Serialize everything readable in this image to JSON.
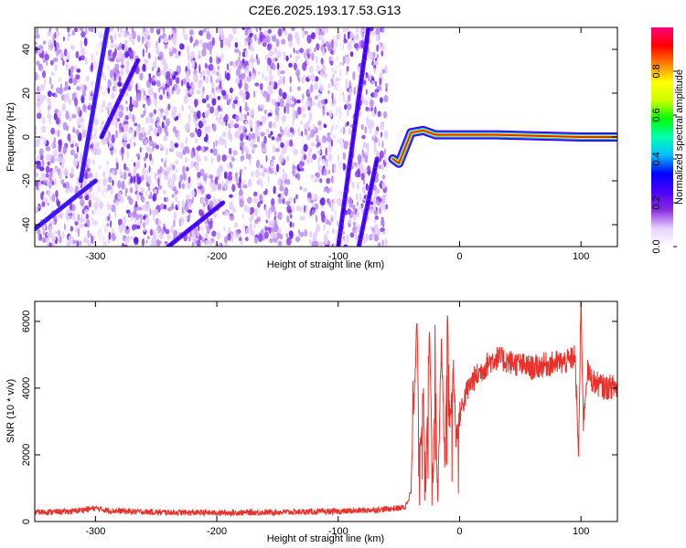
{
  "title": "C2E6.2025.193.17.53.G13",
  "chart_data": [
    {
      "type": "heatmap",
      "title": "C2E6.2025.193.17.53.G13",
      "xlabel": "Height of straight line (km)",
      "ylabel": "Frequency (Hz)",
      "xlim": [
        -350,
        130
      ],
      "ylim": [
        -50,
        50
      ],
      "x_ticks": [
        -300,
        -200,
        -100,
        0,
        100
      ],
      "y_ticks": [
        -40,
        -20,
        0,
        20,
        40
      ],
      "colorbar": {
        "label": "Normalized spectral amplitude",
        "range": [
          0,
          1
        ],
        "ticks": [
          0.0,
          0.2,
          0.4,
          0.6,
          0.8
        ],
        "tick_labels": [
          "0.0",
          "0.2",
          "0.4",
          "0.6",
          "0.8"
        ],
        "colormap": [
          "#ffffff",
          "#e8d0ff",
          "#8a2be2",
          "#4b00ff",
          "#0000ff",
          "#00bfff",
          "#00ffb0",
          "#00ff00",
          "#ccff00",
          "#ffff00",
          "#ff8000",
          "#ff0000",
          "#ff0080"
        ]
      },
      "features": [
        {
          "name": "noise field",
          "x_range": [
            -350,
            -60
          ],
          "y_range": [
            -50,
            50
          ],
          "amplitude": 0.1
        },
        {
          "name": "carrier line",
          "points": [
            [
              -55,
              -10
            ],
            [
              -50,
              -12
            ],
            [
              -45,
              -5
            ],
            [
              -40,
              2
            ],
            [
              -30,
              3
            ],
            [
              -20,
              1
            ],
            [
              0,
              1
            ],
            [
              30,
              1
            ],
            [
              100,
              0
            ],
            [
              130,
              0
            ]
          ],
          "amplitude": 0.9
        },
        {
          "name": "streak 1",
          "points": [
            [
              -350,
              -42
            ],
            [
              -300,
              -20
            ]
          ],
          "amplitude": 0.35
        },
        {
          "name": "streak 2",
          "points": [
            [
              -312,
              -20
            ],
            [
              -290,
              50
            ]
          ],
          "amplitude": 0.35
        },
        {
          "name": "streak 3",
          "points": [
            [
              -295,
              0
            ],
            [
              -265,
              35
            ]
          ],
          "amplitude": 0.3
        },
        {
          "name": "streak 4",
          "points": [
            [
              -240,
              -50
            ],
            [
              -195,
              -30
            ]
          ],
          "amplitude": 0.3
        },
        {
          "name": "streak 5",
          "points": [
            [
              -100,
              -50
            ],
            [
              -75,
              50
            ]
          ],
          "amplitude": 0.3
        },
        {
          "name": "streak 6",
          "points": [
            [
              -83,
              -50
            ],
            [
              -68,
              -10
            ]
          ],
          "amplitude": 0.3
        }
      ]
    },
    {
      "type": "line",
      "xlabel": "Height of straight line (km)",
      "ylabel": "SNR (10 * v/v)",
      "xlim": [
        -350,
        130
      ],
      "ylim": [
        0,
        6600
      ],
      "x_ticks": [
        -300,
        -200,
        -100,
        0,
        100
      ],
      "y_ticks": [
        0,
        2000,
        4000,
        6000
      ],
      "color": "#e8312a",
      "series": [
        {
          "x": [
            -350,
            -320,
            -300,
            -290,
            -270,
            -250,
            -200,
            -150,
            -100,
            -70,
            -50,
            -45,
            -40,
            -38,
            -35,
            -33,
            -30,
            -28,
            -25,
            -22,
            -20,
            -18,
            -15,
            -12,
            -10,
            -8,
            -5,
            -3,
            0,
            5,
            10,
            15,
            20,
            25,
            30,
            40,
            50,
            60,
            70,
            80,
            90,
            95,
            98,
            100,
            102,
            105,
            110,
            115,
            120,
            125,
            130
          ],
          "y": [
            280,
            300,
            400,
            330,
            300,
            280,
            260,
            280,
            300,
            350,
            400,
            420,
            900,
            3500,
            5900,
            1500,
            4000,
            1000,
            5800,
            800,
            4500,
            500,
            5500,
            1500,
            6200,
            3000,
            4500,
            2500,
            3200,
            3800,
            4200,
            4400,
            4600,
            4800,
            4900,
            4800,
            4700,
            4600,
            4700,
            4750,
            4800,
            5000,
            2000,
            6600,
            3000,
            4500,
            4200,
            4100,
            4000,
            4050,
            4000
          ]
        }
      ]
    }
  ]
}
